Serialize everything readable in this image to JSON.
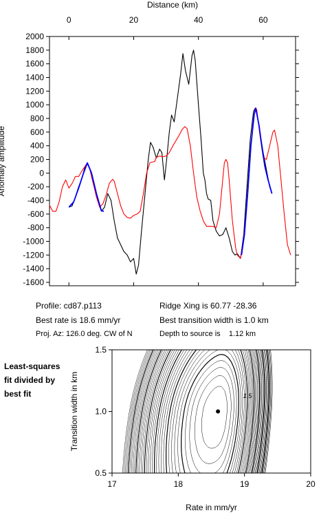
{
  "chart_data": [
    {
      "type": "line",
      "xlabel": "Distance (km)",
      "ylabel": "Anomaly amplitude",
      "xlim": [
        -6,
        70
      ],
      "ylim": [
        -1650,
        2000
      ],
      "x_ticks": [
        0,
        20,
        40,
        60
      ],
      "y_ticks": [
        -1600,
        -1400,
        -1200,
        -1000,
        -800,
        -600,
        -400,
        -200,
        0,
        200,
        400,
        600,
        800,
        1000,
        1200,
        1400,
        1600,
        1800,
        2000
      ],
      "series": [
        {
          "color": "#000000",
          "points": [
            [
              0,
              -500
            ],
            [
              1,
              -480
            ],
            [
              2,
              -350
            ],
            [
              3,
              -200
            ],
            [
              4,
              -80
            ],
            [
              5,
              100
            ],
            [
              5.7,
              150
            ],
            [
              6.5,
              50
            ],
            [
              7.5,
              -150
            ],
            [
              9,
              -400
            ],
            [
              10,
              -560
            ],
            [
              11,
              -500
            ],
            [
              12,
              -300
            ],
            [
              13,
              -400
            ],
            [
              14,
              -700
            ],
            [
              15,
              -950
            ],
            [
              16,
              -1050
            ],
            [
              17,
              -1150
            ],
            [
              18,
              -1200
            ],
            [
              19,
              -1300
            ],
            [
              20,
              -1250
            ],
            [
              20.8,
              -1480
            ],
            [
              21.5,
              -1350
            ],
            [
              22.5,
              -800
            ],
            [
              23.5,
              -300
            ],
            [
              24.5,
              200
            ],
            [
              25.2,
              450
            ],
            [
              26,
              380
            ],
            [
              27,
              220
            ],
            [
              28,
              350
            ],
            [
              28.7,
              300
            ],
            [
              29.5,
              -100
            ],
            [
              30.2,
              200
            ],
            [
              31,
              600
            ],
            [
              31.7,
              850
            ],
            [
              32.5,
              750
            ],
            [
              33.5,
              1100
            ],
            [
              34.5,
              1450
            ],
            [
              35.2,
              1750
            ],
            [
              36,
              1500
            ],
            [
              37,
              1300
            ],
            [
              38,
              1720
            ],
            [
              38.5,
              1800
            ],
            [
              39,
              1650
            ],
            [
              40,
              1000
            ],
            [
              40.8,
              500
            ],
            [
              41.5,
              0
            ],
            [
              42,
              -100
            ],
            [
              42.5,
              -300
            ],
            [
              43,
              -380
            ],
            [
              43.8,
              -400
            ],
            [
              44.5,
              -700
            ],
            [
              45.5,
              -850
            ],
            [
              46.5,
              -920
            ],
            [
              47.5,
              -900
            ],
            [
              48,
              -850
            ],
            [
              48.5,
              -800
            ],
            [
              49.5,
              -950
            ],
            [
              50.5,
              -1150
            ],
            [
              51.3,
              -1200
            ],
            [
              52,
              -1180
            ],
            [
              53,
              -1250
            ],
            [
              54,
              -900
            ],
            [
              55,
              -200
            ],
            [
              56,
              500
            ],
            [
              57,
              900
            ],
            [
              57.5,
              950
            ],
            [
              58,
              900
            ],
            [
              59,
              600
            ],
            [
              60,
              300
            ],
            [
              61,
              50
            ],
            [
              62,
              -200
            ],
            [
              62.7,
              -300
            ]
          ]
        },
        {
          "color": "#ff0000",
          "points": [
            [
              -6,
              -470
            ],
            [
              -5,
              -560
            ],
            [
              -4,
              -560
            ],
            [
              -3,
              -420
            ],
            [
              -2,
              -200
            ],
            [
              -1,
              -100
            ],
            [
              0,
              -220
            ],
            [
              1,
              -150
            ],
            [
              2,
              -50
            ],
            [
              3,
              -50
            ],
            [
              4,
              30
            ],
            [
              5,
              100
            ],
            [
              5.7,
              140
            ],
            [
              6.5,
              50
            ],
            [
              7.5,
              -150
            ],
            [
              8.5,
              -350
            ],
            [
              9.5,
              -500
            ],
            [
              10.5,
              -450
            ],
            [
              11.5,
              -320
            ],
            [
              12.5,
              -150
            ],
            [
              13.5,
              -90
            ],
            [
              14,
              -120
            ],
            [
              15,
              -300
            ],
            [
              16,
              -480
            ],
            [
              17,
              -600
            ],
            [
              18,
              -650
            ],
            [
              19,
              -660
            ],
            [
              20,
              -620
            ],
            [
              21,
              -600
            ],
            [
              22,
              -560
            ],
            [
              23,
              -300
            ],
            [
              24,
              0
            ],
            [
              25,
              150
            ],
            [
              25.7,
              160
            ],
            [
              26.5,
              170
            ],
            [
              27,
              230
            ],
            [
              28,
              250
            ],
            [
              29,
              240
            ],
            [
              30,
              250
            ],
            [
              31,
              300
            ],
            [
              32,
              390
            ],
            [
              33,
              470
            ],
            [
              34,
              550
            ],
            [
              35,
              640
            ],
            [
              35.8,
              680
            ],
            [
              36.5,
              650
            ],
            [
              37.5,
              400
            ],
            [
              38.5,
              0
            ],
            [
              39.5,
              -350
            ],
            [
              40.5,
              -550
            ],
            [
              41.5,
              -700
            ],
            [
              42.5,
              -780
            ],
            [
              43.5,
              -780
            ],
            [
              44.5,
              -780
            ],
            [
              45.5,
              -800
            ],
            [
              46.5,
              -600
            ],
            [
              47.5,
              -100
            ],
            [
              48,
              150
            ],
            [
              48.5,
              200
            ],
            [
              49,
              150
            ],
            [
              49.5,
              -100
            ],
            [
              50.5,
              -700
            ],
            [
              51.5,
              -1100
            ],
            [
              52,
              -1200
            ],
            [
              53,
              -1250
            ],
            [
              54,
              -950
            ],
            [
              55,
              -400
            ],
            [
              56,
              300
            ],
            [
              57,
              780
            ],
            [
              57.5,
              950
            ],
            [
              58,
              930
            ],
            [
              59,
              550
            ],
            [
              60,
              230
            ],
            [
              61,
              200
            ],
            [
              62,
              400
            ],
            [
              63,
              600
            ],
            [
              63.5,
              630
            ],
            [
              64.5,
              400
            ],
            [
              65.5,
              -100
            ],
            [
              66.5,
              -600
            ],
            [
              67.5,
              -1050
            ],
            [
              68.5,
              -1200
            ]
          ]
        },
        {
          "color": "#0000ff",
          "points": [
            [
              0,
              -500
            ],
            [
              1.5,
              -420
            ],
            [
              3,
              -220
            ],
            [
              4.5,
              0
            ],
            [
              5.7,
              150
            ],
            [
              7,
              0
            ],
            [
              8.5,
              -300
            ],
            [
              10,
              -550
            ],
            [
              10.8,
              -560
            ]
          ]
        },
        {
          "color": "#0000ff",
          "points": [
            [
              53.3,
              -1200
            ],
            [
              54.2,
              -900
            ],
            [
              55.2,
              -300
            ],
            [
              56.2,
              400
            ],
            [
              57.2,
              850
            ],
            [
              57.7,
              950
            ],
            [
              58.7,
              700
            ],
            [
              59.7,
              350
            ],
            [
              60.5,
              100
            ],
            [
              61.5,
              -100
            ],
            [
              62.7,
              -300
            ]
          ]
        }
      ]
    },
    {
      "type": "contour",
      "xlabel": "Rate in mm/yr",
      "ylabel": "Transition width in km",
      "xlim": [
        17,
        20
      ],
      "ylim": [
        0.5,
        1.5
      ],
      "x_ticks": [
        17,
        18,
        19,
        20
      ],
      "y_ticks": [
        0.5,
        1.0,
        1.5
      ],
      "minimum": {
        "x": 18.6,
        "y": 1.0
      },
      "contour_label": "1.5"
    }
  ],
  "profile_info": {
    "profile": "Profile: cd87.p113",
    "ridge": "Ridge Xing is 60.77 -28.36",
    "rate": "Best rate is 18.6 mm/yr",
    "width": "Best transition width is 1.0 km",
    "azimuth": "Proj. Az: 126.0 deg. CW of N",
    "depth": "Depth to source is    1.12 km"
  },
  "contour_note": [
    "Least-squares",
    "fit divided by",
    "best fit"
  ]
}
